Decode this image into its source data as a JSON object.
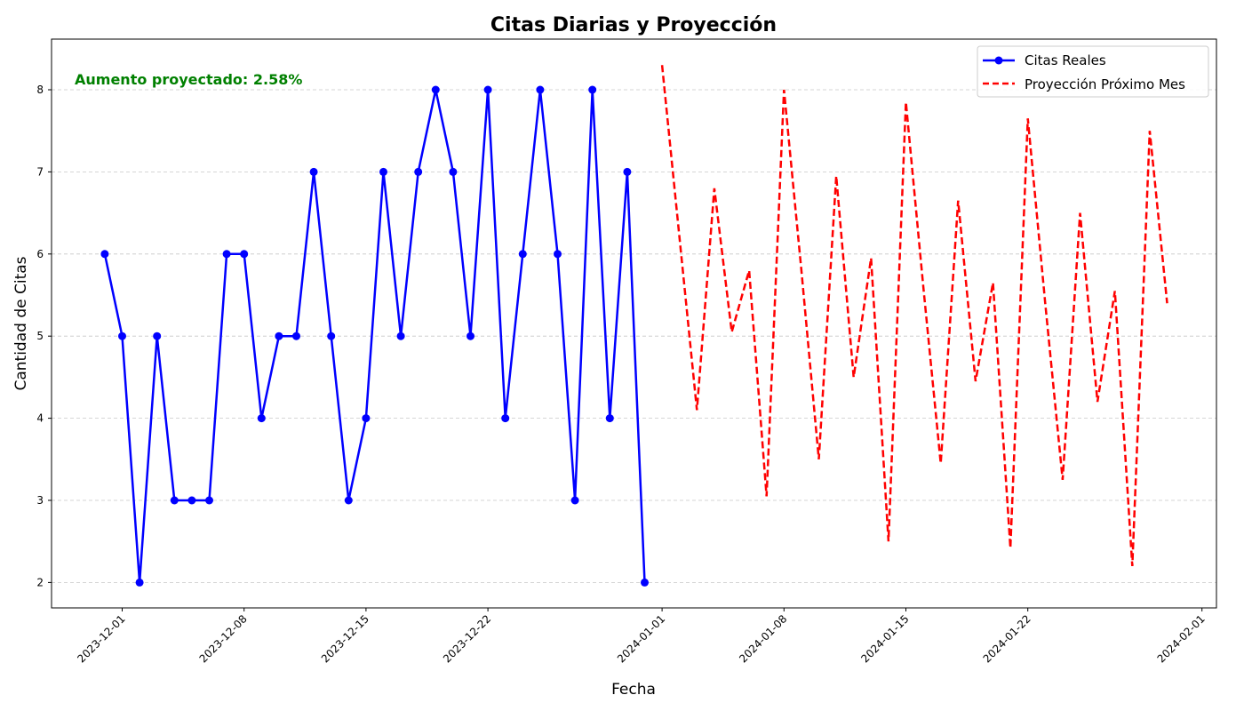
{
  "colors": {
    "actual": "#0000ff",
    "projection": "#ff0000",
    "annotation": "#008000",
    "grid": "#c8c8c8"
  },
  "chart_data": {
    "type": "line",
    "title": "Citas Diarias y Proyección",
    "xlabel": "Fecha",
    "ylabel": "Cantidad de Citas",
    "xlim": [
      "2023-11-27",
      "2024-02-01"
    ],
    "ylim": [
      1.7,
      8.6
    ],
    "x_ticks": [
      "2023-12-01",
      "2023-12-08",
      "2023-12-15",
      "2023-12-22",
      "2024-01-01",
      "2024-01-08",
      "2024-01-15",
      "2024-01-22",
      "2024-02-01"
    ],
    "y_ticks": [
      2,
      3,
      4,
      5,
      6,
      7,
      8
    ],
    "grid": "horizontal dashed",
    "legend_position": "top-right",
    "annotation": "Aumento proyectado: 2.58%",
    "series": [
      {
        "name": "Citas Reales",
        "style": "solid line with circle markers",
        "x": [
          "2023-11-30",
          "2023-12-01",
          "2023-12-02",
          "2023-12-03",
          "2023-12-04",
          "2023-12-05",
          "2023-12-06",
          "2023-12-07",
          "2023-12-08",
          "2023-12-09",
          "2023-12-10",
          "2023-12-11",
          "2023-12-12",
          "2023-12-13",
          "2023-12-14",
          "2023-12-15",
          "2023-12-16",
          "2023-12-17",
          "2023-12-18",
          "2023-12-19",
          "2023-12-20",
          "2023-12-21",
          "2023-12-22",
          "2023-12-23",
          "2023-12-24",
          "2023-12-25",
          "2023-12-26",
          "2023-12-27",
          "2023-12-28",
          "2023-12-29",
          "2023-12-30",
          "2023-12-31"
        ],
        "values": [
          6,
          5,
          2,
          5,
          3,
          3,
          3,
          6,
          6,
          4,
          5,
          5,
          7,
          5,
          3,
          4,
          7,
          5,
          7,
          8,
          7,
          5,
          8,
          4,
          6,
          8,
          6,
          3,
          8,
          4,
          7,
          2
        ]
      },
      {
        "name": "Proyección Próximo Mes",
        "style": "dashed line",
        "x": [
          "2024-01-01",
          "2024-01-02",
          "2024-01-03",
          "2024-01-04",
          "2024-01-05",
          "2024-01-06",
          "2024-01-07",
          "2024-01-08",
          "2024-01-09",
          "2024-01-10",
          "2024-01-11",
          "2024-01-12",
          "2024-01-13",
          "2024-01-14",
          "2024-01-15",
          "2024-01-16",
          "2024-01-17",
          "2024-01-18",
          "2024-01-19",
          "2024-01-20",
          "2024-01-21",
          "2024-01-22",
          "2024-01-23",
          "2024-01-24",
          "2024-01-25",
          "2024-01-26",
          "2024-01-27",
          "2024-01-28",
          "2024-01-29",
          "2024-01-30"
        ],
        "values": [
          8.3,
          6.2,
          4.1,
          6.8,
          5.05,
          5.8,
          3.05,
          8.0,
          5.8,
          3.5,
          6.95,
          4.5,
          5.95,
          2.5,
          7.85,
          5.6,
          3.45,
          6.65,
          4.45,
          5.65,
          2.42,
          7.65,
          5.4,
          3.25,
          6.5,
          4.2,
          5.55,
          2.2,
          7.5,
          5.4
        ]
      }
    ]
  }
}
